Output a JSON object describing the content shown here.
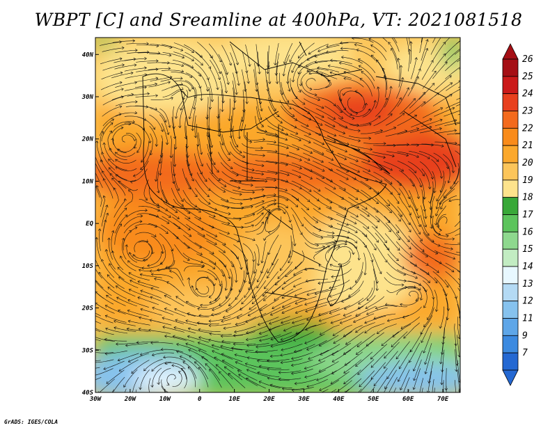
{
  "title": "WBPT [C] and Sreamline at 400hPa, VT: 2021081518",
  "footer": "GrADS: IGES/COLA",
  "chart_data": {
    "type": "heatmap",
    "variable": "WBPT [C]",
    "overlay": "streamlines",
    "level": "400hPa",
    "valid_time": "2021081518",
    "x_ticks": [
      {
        "lon": -30,
        "label": "30W"
      },
      {
        "lon": -20,
        "label": "20W"
      },
      {
        "lon": -10,
        "label": "10W"
      },
      {
        "lon": 0,
        "label": "0"
      },
      {
        "lon": 10,
        "label": "10E"
      },
      {
        "lon": 20,
        "label": "20E"
      },
      {
        "lon": 30,
        "label": "30E"
      },
      {
        "lon": 40,
        "label": "40E"
      },
      {
        "lon": 50,
        "label": "50E"
      },
      {
        "lon": 60,
        "label": "60E"
      },
      {
        "lon": 70,
        "label": "70E"
      }
    ],
    "y_ticks": [
      {
        "lat": 40,
        "label": "40N"
      },
      {
        "lat": 30,
        "label": "30N"
      },
      {
        "lat": 20,
        "label": "20N"
      },
      {
        "lat": 10,
        "label": "10N"
      },
      {
        "lat": 0,
        "label": "EQ"
      },
      {
        "lat": -10,
        "label": "10S"
      },
      {
        "lat": -20,
        "label": "20S"
      },
      {
        "lat": -30,
        "label": "30S"
      },
      {
        "lat": -40,
        "label": "40S"
      }
    ],
    "xlim": [
      -30,
      75
    ],
    "ylim": [
      -40,
      44
    ],
    "colorbar": {
      "labels": [
        "26",
        "25",
        "24",
        "23",
        "22",
        "21",
        "20",
        "19",
        "18",
        "17",
        "16",
        "15",
        "14",
        "13",
        "12",
        "11",
        "9",
        "7"
      ],
      "colors": [
        "#a50f15",
        "#cb1a1a",
        "#e8401e",
        "#f36a1c",
        "#f98b1a",
        "#fba82c",
        "#fcc55a",
        "#fde38c",
        "#38a838",
        "#5cc45c",
        "#8ed88e",
        "#c2ecc2",
        "#e8f8ff",
        "#b4daf4",
        "#86c2ee",
        "#5ea6e8",
        "#3c8ae0",
        "#2468d2"
      ],
      "top_color": "#a50f15",
      "bottom_color": "#2468d2"
    }
  }
}
